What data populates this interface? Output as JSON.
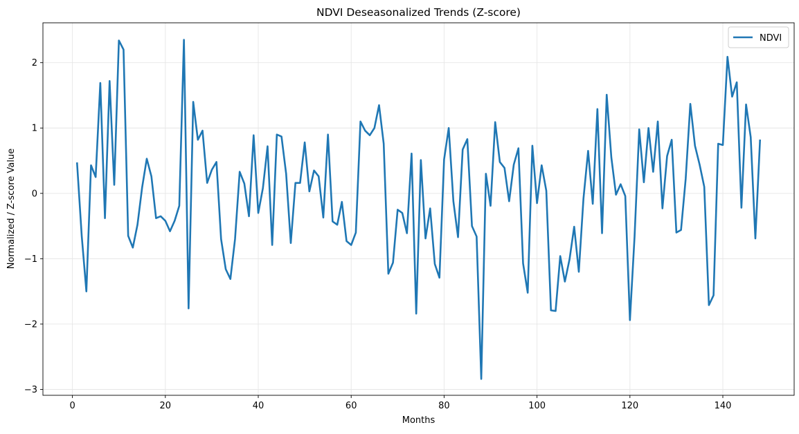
{
  "chart_data": {
    "type": "line",
    "title": "NDVI Deseasonalized Trends (Z-score)",
    "xlabel": "Months",
    "ylabel": "Normalized / Z-score Value",
    "xlim": [
      -6.35,
      155.35
    ],
    "ylim": [
      -3.09,
      2.61
    ],
    "xticks": [
      0,
      20,
      40,
      60,
      80,
      100,
      120,
      140
    ],
    "yticks": [
      -3,
      -2,
      -1,
      0,
      1,
      2
    ],
    "xtick_labels": [
      "0",
      "20",
      "40",
      "60",
      "80",
      "100",
      "120",
      "140"
    ],
    "ytick_labels": [
      "−3",
      "−2",
      "−1",
      "0",
      "1",
      "2"
    ],
    "grid": true,
    "legend_position": "top-right",
    "colors": {
      "series": "#1f77b4",
      "grid": "#e6e6e6",
      "axes": "#000000"
    },
    "series": [
      {
        "name": "NDVI",
        "x": [
          1,
          2,
          3,
          4,
          5,
          6,
          7,
          8,
          9,
          10,
          11,
          12,
          13,
          14,
          15,
          16,
          17,
          18,
          19,
          20,
          21,
          22,
          23,
          24,
          25,
          26,
          27,
          28,
          29,
          30,
          31,
          32,
          33,
          34,
          35,
          36,
          37,
          38,
          39,
          40,
          41,
          42,
          43,
          44,
          45,
          46,
          47,
          48,
          49,
          50,
          51,
          52,
          53,
          54,
          55,
          56,
          57,
          58,
          59,
          60,
          61,
          62,
          63,
          64,
          65,
          66,
          67,
          68,
          69,
          70,
          71,
          72,
          73,
          74,
          75,
          76,
          77,
          78,
          79,
          80,
          81,
          82,
          83,
          84,
          85,
          86,
          87,
          88,
          89,
          90,
          91,
          92,
          93,
          94,
          95,
          96,
          97,
          98,
          99,
          100,
          101,
          102,
          103,
          104,
          105,
          106,
          107,
          108,
          109,
          110,
          111,
          112,
          113,
          114,
          115,
          116,
          117,
          118,
          119,
          120,
          121,
          122,
          123,
          124,
          125,
          126,
          127,
          128,
          129,
          130,
          131,
          132,
          133,
          134,
          135,
          136,
          137,
          138,
          139,
          140,
          141,
          142,
          143,
          144,
          145,
          146,
          147,
          148
        ],
        "values": [
          0.46,
          -0.65,
          -1.5,
          0.43,
          0.25,
          1.69,
          -0.38,
          1.72,
          0.13,
          2.34,
          2.2,
          -0.65,
          -0.83,
          -0.48,
          0.09,
          0.53,
          0.26,
          -0.38,
          -0.35,
          -0.42,
          -0.58,
          -0.42,
          -0.19,
          2.35,
          -1.76,
          1.4,
          0.82,
          0.96,
          0.16,
          0.36,
          0.48,
          -0.7,
          -1.16,
          -1.31,
          -0.7,
          0.33,
          0.15,
          -0.35,
          0.89,
          -0.3,
          0.08,
          0.72,
          -0.79,
          0.9,
          0.87,
          0.3,
          -0.76,
          0.16,
          0.16,
          0.78,
          0.03,
          0.35,
          0.26,
          -0.37,
          0.9,
          -0.43,
          -0.48,
          -0.13,
          -0.73,
          -0.79,
          -0.6,
          1.1,
          0.96,
          0.89,
          1.0,
          1.35,
          0.76,
          -1.23,
          -1.06,
          -0.25,
          -0.3,
          -0.61,
          0.61,
          -1.84,
          0.51,
          -0.69,
          -0.23,
          -1.08,
          -1.29,
          0.52,
          1.0,
          -0.12,
          -0.67,
          0.67,
          0.83,
          -0.5,
          -0.66,
          -2.84,
          0.3,
          -0.19,
          1.09,
          0.48,
          0.39,
          -0.12,
          0.44,
          0.69,
          -1.07,
          -1.52,
          0.73,
          -0.15,
          0.43,
          0.04,
          -1.79,
          -1.8,
          -0.96,
          -1.35,
          -1.01,
          -0.51,
          -1.2,
          -0.08,
          0.65,
          -0.16,
          1.29,
          -0.61,
          1.51,
          0.55,
          -0.02,
          0.14,
          -0.04,
          -1.94,
          -0.66,
          0.98,
          0.17,
          1.0,
          0.33,
          1.1,
          -0.23,
          0.57,
          0.82,
          -0.6,
          -0.56,
          0.22,
          1.37,
          0.73,
          0.44,
          0.1,
          -1.71,
          -1.56,
          0.76,
          0.74,
          2.09,
          1.48,
          1.7,
          -0.22,
          1.36,
          0.86,
          -0.69,
          0.81
        ]
      }
    ]
  }
}
